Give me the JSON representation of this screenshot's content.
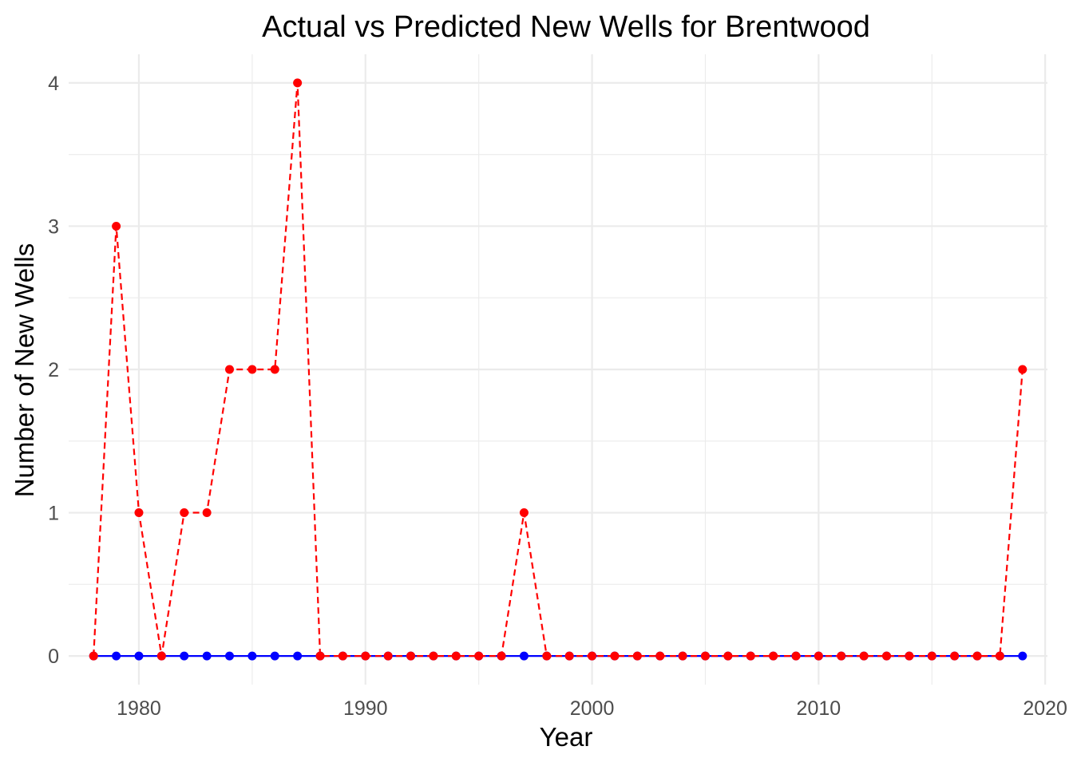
{
  "chart_data": {
    "type": "line",
    "title": "Actual vs Predicted New Wells for Brentwood",
    "xlabel": "Year",
    "ylabel": "Number of New Wells",
    "xlim": [
      1976.9,
      2020.1
    ],
    "ylim": [
      -0.2,
      4.2
    ],
    "x_ticks": [
      1980,
      1990,
      2000,
      2010,
      2020
    ],
    "y_ticks": [
      0,
      1,
      2,
      3,
      4
    ],
    "grid": true,
    "legend": "none",
    "x": [
      1978,
      1979,
      1980,
      1981,
      1982,
      1983,
      1984,
      1985,
      1986,
      1987,
      1988,
      1989,
      1990,
      1991,
      1992,
      1993,
      1994,
      1995,
      1996,
      1997,
      1998,
      1999,
      2000,
      2001,
      2002,
      2003,
      2004,
      2005,
      2006,
      2007,
      2008,
      2009,
      2010,
      2011,
      2012,
      2013,
      2014,
      2015,
      2016,
      2017,
      2018,
      2019
    ],
    "series": [
      {
        "color": "#0000ff",
        "style": "solid",
        "values": [
          0,
          0,
          0,
          0,
          0,
          0,
          0,
          0,
          0,
          0,
          0,
          0,
          0,
          0,
          0,
          0,
          0,
          0,
          0,
          0,
          0,
          0,
          0,
          0,
          0,
          0,
          0,
          0,
          0,
          0,
          0,
          0,
          0,
          0,
          0,
          0,
          0,
          0,
          0,
          0,
          0,
          0
        ]
      },
      {
        "color": "#ff0000",
        "style": "dashed",
        "values": [
          0,
          3,
          1,
          0,
          1,
          1,
          2,
          2,
          2,
          4,
          0,
          0,
          0,
          0,
          0,
          0,
          0,
          0,
          0,
          1,
          0,
          0,
          0,
          0,
          0,
          0,
          0,
          0,
          0,
          0,
          0,
          0,
          0,
          0,
          0,
          0,
          0,
          0,
          0,
          0,
          0,
          2
        ]
      }
    ]
  }
}
